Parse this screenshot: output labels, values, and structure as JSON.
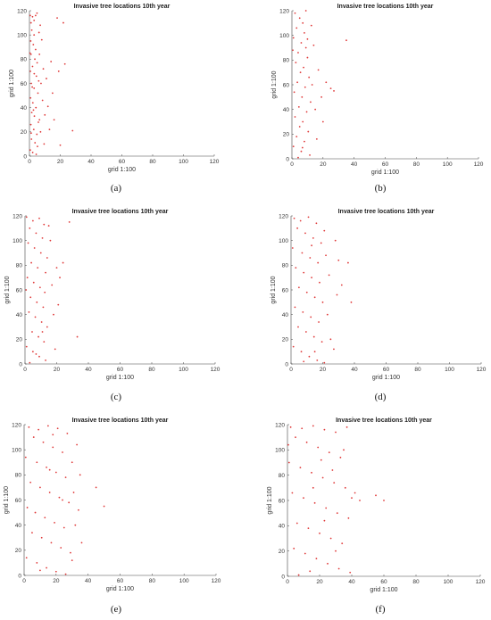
{
  "figure": {
    "panels": [
      {
        "caption": "(a)",
        "title": "Invasive tree locations 10th year",
        "xlabel": "grid 1:100",
        "ylabel": "grid 1:100"
      },
      {
        "caption": "(b)",
        "title": "Invasive tree locations 10th year",
        "xlabel": "grid 1:100",
        "ylabel": "grid 1:100"
      },
      {
        "caption": "(c)",
        "title": "Invasive tree locations 10th year",
        "xlabel": "grid 1:100",
        "ylabel": "grid 1:100"
      },
      {
        "caption": "(d)",
        "title": "Invasive tree locations 10th year",
        "xlabel": "grid 1:100",
        "ylabel": "grid 1:100"
      },
      {
        "caption": "(e)",
        "title": "Invasive tree locations 10th year",
        "xlabel": "grid 1:100",
        "ylabel": "grid 1:100"
      },
      {
        "caption": "(f)",
        "title": "Invasive tree locations 10th year",
        "xlabel": "grid 1:100",
        "ylabel": "grid 1:100"
      }
    ]
  },
  "chart_data": [
    {
      "type": "scatter",
      "title": "Invasive tree locations 10th year",
      "xlabel": "grid 1:100",
      "ylabel": "grid 1:100",
      "xlim": [
        0,
        120
      ],
      "ylim": [
        0,
        120
      ],
      "xticks": [
        "0",
        "20",
        "40",
        "60",
        "80",
        "100",
        "120"
      ],
      "yticks": [
        "0",
        "20",
        "40",
        "60",
        "80",
        "100",
        "120"
      ],
      "grid": false,
      "marker_color": "#e03a3a",
      "points": [
        [
          0.5,
          116
        ],
        [
          1,
          110
        ],
        [
          2,
          115
        ],
        [
          3,
          112
        ],
        [
          4,
          116
        ],
        [
          1.5,
          104
        ],
        [
          3,
          100
        ],
        [
          0.8,
          95
        ],
        [
          2.5,
          92
        ],
        [
          4,
          88
        ],
        [
          1,
          84
        ],
        [
          3.5,
          80
        ],
        [
          5,
          77
        ],
        [
          2,
          74
        ],
        [
          0.6,
          70
        ],
        [
          4.5,
          66
        ],
        [
          6,
          62
        ],
        [
          1.2,
          60
        ],
        [
          3,
          56
        ],
        [
          5.5,
          52
        ],
        [
          0.7,
          48
        ],
        [
          2.2,
          44
        ],
        [
          4.2,
          40
        ],
        [
          1.5,
          36
        ],
        [
          3.2,
          33
        ],
        [
          6.5,
          30
        ],
        [
          0.9,
          26
        ],
        [
          2.8,
          22
        ],
        [
          4.8,
          18
        ],
        [
          1.3,
          14
        ],
        [
          3.6,
          11
        ],
        [
          5.2,
          8
        ],
        [
          0.5,
          5
        ],
        [
          2.1,
          3
        ],
        [
          4.4,
          1.5
        ],
        [
          7,
          108
        ],
        [
          8,
          96
        ],
        [
          6.5,
          84
        ],
        [
          9,
          72
        ],
        [
          7.5,
          60
        ],
        [
          8.5,
          46
        ],
        [
          10,
          34
        ],
        [
          7.2,
          20
        ],
        [
          9.5,
          10
        ],
        [
          11,
          64
        ],
        [
          12,
          41
        ],
        [
          14,
          78
        ],
        [
          15,
          52
        ],
        [
          13,
          22
        ],
        [
          18,
          114
        ],
        [
          19,
          70
        ],
        [
          20,
          9
        ],
        [
          16,
          30
        ],
        [
          22,
          110
        ],
        [
          23,
          76
        ],
        [
          28,
          21
        ],
        [
          3.1,
          68
        ],
        [
          1.8,
          57
        ],
        [
          2.6,
          38
        ],
        [
          5.8,
          28
        ],
        [
          0.4,
          85
        ],
        [
          6.2,
          102
        ],
        [
          4.9,
          118
        ],
        [
          1.1,
          19
        ]
      ]
    },
    {
      "type": "scatter",
      "title": "Invasive tree locations 10th year",
      "xlabel": "grid 1:100",
      "ylabel": "grid 1:100",
      "xlim": [
        0,
        120
      ],
      "ylim": [
        0,
        120
      ],
      "xticks": [
        "0",
        "20",
        "40",
        "60",
        "80",
        "100",
        "120"
      ],
      "yticks": [
        "0",
        "20",
        "40",
        "60",
        "80",
        "100",
        "120"
      ],
      "grid": false,
      "marker_color": "#e03a3a",
      "points": [
        [
          2,
          118
        ],
        [
          5,
          114
        ],
        [
          7,
          110
        ],
        [
          3,
          106
        ],
        [
          8,
          102
        ],
        [
          1,
          98
        ],
        [
          6,
          94
        ],
        [
          9,
          90
        ],
        [
          4,
          86
        ],
        [
          10,
          82
        ],
        [
          2.5,
          78
        ],
        [
          7.5,
          74
        ],
        [
          5.5,
          70
        ],
        [
          11,
          66
        ],
        [
          3.5,
          62
        ],
        [
          8.5,
          58
        ],
        [
          1.5,
          54
        ],
        [
          6.5,
          50
        ],
        [
          12,
          46
        ],
        [
          4.5,
          42
        ],
        [
          9.5,
          38
        ],
        [
          2,
          34
        ],
        [
          7,
          30
        ],
        [
          5,
          26
        ],
        [
          10.5,
          22
        ],
        [
          3,
          18
        ],
        [
          8,
          14
        ],
        [
          1,
          10
        ],
        [
          6,
          6
        ],
        [
          11.5,
          3
        ],
        [
          4,
          1
        ],
        [
          13,
          60
        ],
        [
          14,
          92
        ],
        [
          15,
          40
        ],
        [
          16,
          16
        ],
        [
          12.5,
          108
        ],
        [
          17,
          72
        ],
        [
          19,
          50
        ],
        [
          22,
          62
        ],
        [
          25,
          57
        ],
        [
          27,
          55
        ],
        [
          35,
          96
        ],
        [
          20,
          30
        ],
        [
          9,
          120
        ],
        [
          6.8,
          9
        ],
        [
          0.6,
          88
        ],
        [
          10,
          97
        ]
      ]
    },
    {
      "type": "scatter",
      "title": "Invasive tree locations 10th year",
      "xlabel": "grid 1:100",
      "ylabel": "grid 1:100",
      "xlim": [
        0,
        120
      ],
      "ylim": [
        0,
        120
      ],
      "xticks": [
        "0",
        "20",
        "40",
        "60",
        "80",
        "100",
        "120"
      ],
      "yticks": [
        "0",
        "20",
        "40",
        "60",
        "80",
        "100",
        "120"
      ],
      "grid": false,
      "marker_color": "#e03a3a",
      "points": [
        [
          1,
          119
        ],
        [
          5,
          116
        ],
        [
          9,
          118
        ],
        [
          12,
          113
        ],
        [
          3,
          110
        ],
        [
          7,
          106
        ],
        [
          11,
          102
        ],
        [
          2,
          98
        ],
        [
          6,
          94
        ],
        [
          10,
          90
        ],
        [
          14,
          86
        ],
        [
          4,
          82
        ],
        [
          8,
          78
        ],
        [
          13,
          74
        ],
        [
          1.5,
          70
        ],
        [
          5.5,
          66
        ],
        [
          9.5,
          62
        ],
        [
          12.5,
          58
        ],
        [
          3.5,
          54
        ],
        [
          7.5,
          50
        ],
        [
          11.5,
          46
        ],
        [
          2.5,
          42
        ],
        [
          6.5,
          38
        ],
        [
          10.5,
          34
        ],
        [
          14,
          30
        ],
        [
          4.5,
          26
        ],
        [
          8.5,
          22
        ],
        [
          12,
          18
        ],
        [
          1,
          14
        ],
        [
          5,
          10
        ],
        [
          9,
          6
        ],
        [
          13,
          3
        ],
        [
          3,
          1
        ],
        [
          16,
          100
        ],
        [
          17,
          64
        ],
        [
          18,
          40
        ],
        [
          19,
          12
        ],
        [
          20,
          78
        ],
        [
          22,
          70
        ],
        [
          24,
          82
        ],
        [
          21,
          48
        ],
        [
          33,
          22
        ],
        [
          28,
          115
        ],
        [
          15,
          112
        ],
        [
          0.7,
          60
        ],
        [
          7,
          8
        ],
        [
          11,
          26
        ]
      ]
    },
    {
      "type": "scatter",
      "title": "Invasive tree locations 10th year",
      "xlabel": "grid 1:100",
      "ylabel": "grid 1:100",
      "xlim": [
        0,
        120
      ],
      "ylim": [
        0,
        120
      ],
      "xticks": [
        "0",
        "20",
        "40",
        "60",
        "80",
        "100",
        "120"
      ],
      "yticks": [
        "0",
        "20",
        "40",
        "60",
        "80",
        "100",
        "120"
      ],
      "grid": false,
      "marker_color": "#e03a3a",
      "points": [
        [
          2,
          118
        ],
        [
          6,
          116
        ],
        [
          11,
          119
        ],
        [
          16,
          114
        ],
        [
          4,
          110
        ],
        [
          9,
          106
        ],
        [
          14,
          102
        ],
        [
          19,
          98
        ],
        [
          1,
          94
        ],
        [
          7,
          90
        ],
        [
          12,
          86
        ],
        [
          17,
          82
        ],
        [
          3,
          78
        ],
        [
          8,
          74
        ],
        [
          13,
          70
        ],
        [
          18,
          66
        ],
        [
          5,
          62
        ],
        [
          10,
          58
        ],
        [
          15,
          54
        ],
        [
          20,
          50
        ],
        [
          2.5,
          46
        ],
        [
          7.5,
          42
        ],
        [
          12.5,
          38
        ],
        [
          17.5,
          34
        ],
        [
          4.5,
          30
        ],
        [
          9.5,
          26
        ],
        [
          14.5,
          22
        ],
        [
          19.5,
          18
        ],
        [
          1.5,
          14
        ],
        [
          6.5,
          10
        ],
        [
          11.5,
          6
        ],
        [
          16.5,
          3
        ],
        [
          21,
          1
        ],
        [
          22,
          88
        ],
        [
          24,
          72
        ],
        [
          23,
          40
        ],
        [
          25,
          20
        ],
        [
          21,
          108
        ],
        [
          28,
          100
        ],
        [
          30,
          84
        ],
        [
          29,
          56
        ],
        [
          27,
          12
        ],
        [
          32,
          64
        ],
        [
          38,
          50
        ],
        [
          36,
          82
        ],
        [
          15,
          10
        ],
        [
          8,
          2
        ],
        [
          13,
          96
        ]
      ]
    },
    {
      "type": "scatter",
      "title": "Invasive tree locations 10th year",
      "xlabel": "grid 1:100",
      "ylabel": "grid 1:100",
      "xlim": [
        0,
        120
      ],
      "ylim": [
        0,
        120
      ],
      "xticks": [
        "0",
        "20",
        "40",
        "60",
        "80",
        "100",
        "120"
      ],
      "yticks": [
        "0",
        "20",
        "40",
        "60",
        "80",
        "100",
        "120"
      ],
      "grid": false,
      "marker_color": "#e03a3a",
      "points": [
        [
          3,
          118
        ],
        [
          9,
          116
        ],
        [
          15,
          119
        ],
        [
          21,
          117
        ],
        [
          27,
          113
        ],
        [
          6,
          110
        ],
        [
          12,
          106
        ],
        [
          18,
          102
        ],
        [
          24,
          98
        ],
        [
          1,
          94
        ],
        [
          8,
          90
        ],
        [
          14,
          86
        ],
        [
          20,
          82
        ],
        [
          26,
          78
        ],
        [
          4,
          74
        ],
        [
          10,
          70
        ],
        [
          16,
          66
        ],
        [
          22,
          62
        ],
        [
          28,
          58
        ],
        [
          2,
          54
        ],
        [
          7,
          50
        ],
        [
          13,
          46
        ],
        [
          19,
          42
        ],
        [
          25,
          38
        ],
        [
          5,
          34
        ],
        [
          11,
          30
        ],
        [
          17,
          26
        ],
        [
          23,
          22
        ],
        [
          29,
          18
        ],
        [
          1.5,
          14
        ],
        [
          8,
          10
        ],
        [
          14,
          6
        ],
        [
          20,
          3
        ],
        [
          26,
          1
        ],
        [
          30,
          90
        ],
        [
          31,
          66
        ],
        [
          32,
          40
        ],
        [
          30,
          12
        ],
        [
          33,
          104
        ],
        [
          35,
          80
        ],
        [
          34,
          52
        ],
        [
          36,
          26
        ],
        [
          50,
          55
        ],
        [
          45,
          70
        ],
        [
          18,
          112
        ],
        [
          10,
          4
        ],
        [
          24,
          60
        ],
        [
          16,
          84
        ]
      ]
    },
    {
      "type": "scatter",
      "title": "Invasive tree locations 10th year",
      "xlabel": "grid 1:100",
      "ylabel": "grid 1:100",
      "xlim": [
        0,
        120
      ],
      "ylim": [
        0,
        120
      ],
      "xticks": [
        "0",
        "20",
        "40",
        "60",
        "80",
        "100",
        "120"
      ],
      "yticks": [
        "0",
        "20",
        "40",
        "60",
        "80",
        "100",
        "120"
      ],
      "grid": false,
      "marker_color": "#e03a3a",
      "points": [
        [
          2,
          118
        ],
        [
          9,
          117
        ],
        [
          16,
          119
        ],
        [
          23,
          116
        ],
        [
          30,
          114
        ],
        [
          37,
          118
        ],
        [
          5,
          110
        ],
        [
          12,
          106
        ],
        [
          19,
          102
        ],
        [
          26,
          98
        ],
        [
          33,
          94
        ],
        [
          1,
          90
        ],
        [
          8,
          86
        ],
        [
          15,
          82
        ],
        [
          22,
          78
        ],
        [
          29,
          74
        ],
        [
          36,
          70
        ],
        [
          3,
          66
        ],
        [
          10,
          62
        ],
        [
          17,
          58
        ],
        [
          24,
          54
        ],
        [
          31,
          50
        ],
        [
          38,
          46
        ],
        [
          6,
          42
        ],
        [
          13,
          38
        ],
        [
          20,
          34
        ],
        [
          27,
          30
        ],
        [
          34,
          26
        ],
        [
          4,
          22
        ],
        [
          11,
          18
        ],
        [
          18,
          14
        ],
        [
          25,
          10
        ],
        [
          32,
          6
        ],
        [
          39,
          3
        ],
        [
          7,
          1
        ],
        [
          14,
          4
        ],
        [
          40,
          62
        ],
        [
          42,
          66
        ],
        [
          45,
          60
        ],
        [
          55,
          64
        ],
        [
          60,
          60
        ],
        [
          21,
          92
        ],
        [
          28,
          84
        ],
        [
          35,
          100
        ],
        [
          0.5,
          104
        ],
        [
          30,
          20
        ],
        [
          16,
          70
        ],
        [
          23,
          44
        ]
      ]
    }
  ]
}
